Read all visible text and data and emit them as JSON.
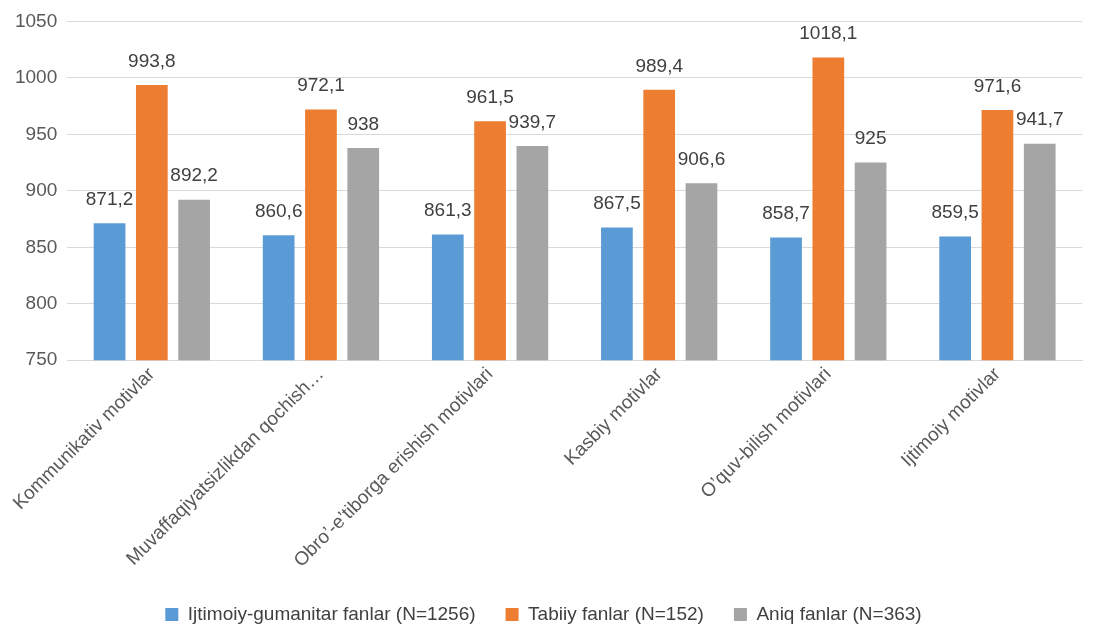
{
  "chart_data": {
    "type": "bar",
    "categories": [
      "Kommunikativ motivlar",
      "Muvaffaqiyatsizlikdan qochish…",
      "Obro’-e’tiborga erishish motivlari",
      "Kasbiy motivlar",
      "O’quv-bilish motivlari",
      "Ijtimoiy motivlar"
    ],
    "series": [
      {
        "name": "Ijtimoiy-gumanitar fanlar (N=1256)",
        "color": "#5b9bd5",
        "values": [
          871.2,
          860.6,
          861.3,
          867.5,
          858.7,
          859.5
        ],
        "value_labels": [
          "871,2",
          "860,6",
          "861,3",
          "867,5",
          "858,7",
          "859,5"
        ]
      },
      {
        "name": "Tabiiy fanlar (N=152)",
        "color": "#ed7d31",
        "values": [
          993.8,
          972.1,
          961.5,
          989.4,
          1018.1,
          971.6
        ],
        "value_labels": [
          "993,8",
          "972,1",
          "961,5",
          "989,4",
          "1018,1",
          "971,6"
        ]
      },
      {
        "name": "Aniq fanlar (N=363)",
        "color": "#a5a5a5",
        "values": [
          892.2,
          938,
          939.7,
          906.6,
          925,
          941.7
        ],
        "value_labels": [
          "892,2",
          "938",
          "939,7",
          "906,6",
          "925",
          "941,7"
        ]
      }
    ],
    "ylim": [
      750,
      1050
    ],
    "yticks": [
      750,
      800,
      850,
      900,
      950,
      1000,
      1050
    ],
    "grid": "y",
    "legend": "bottom"
  }
}
